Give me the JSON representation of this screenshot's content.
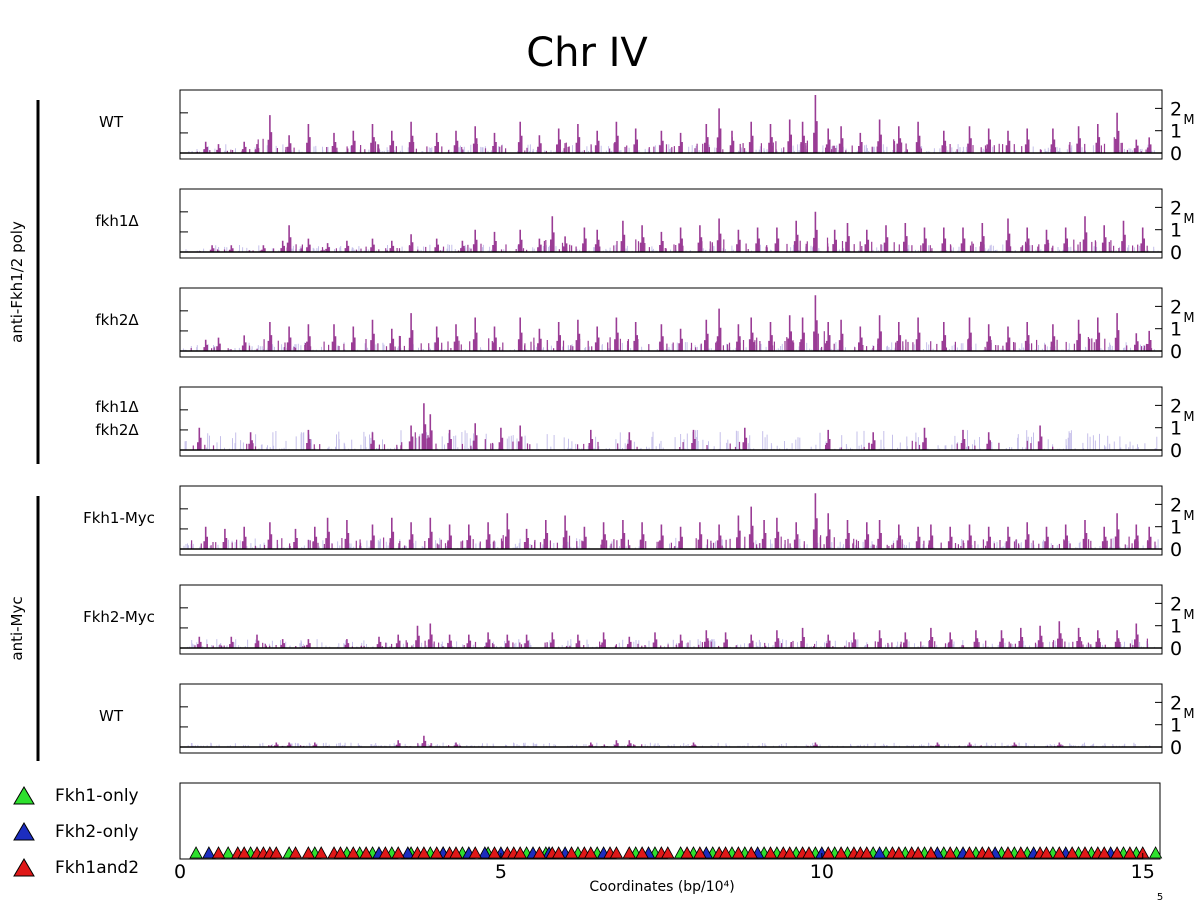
{
  "chart_data": {
    "type": "bar",
    "title": "Chr IV",
    "xlabel": "Coordinates (bp/10⁴)",
    "x_unit_label": "5",
    "xlim": [
      0,
      15.3
    ],
    "x_ticks": [
      "0",
      "5",
      "10",
      "15"
    ],
    "ylim": [
      0,
      2.6
    ],
    "y_ticks": [
      "0",
      "1",
      "2"
    ],
    "y_unit_label": "M",
    "colors": {
      "bound": "#9a3c95",
      "background": "#c6c0ea",
      "axis": "#000000",
      "fkh1_only": "#2ee02e",
      "fkh2_only": "#1c2dbf",
      "fkh1and2": "#e01818"
    },
    "groups": [
      {
        "label": "anti-Fkh1/2 poly",
        "tracks": [
          0,
          1,
          2,
          3
        ]
      },
      {
        "label": "anti-Myc",
        "tracks": [
          4,
          5,
          6
        ]
      }
    ],
    "tracks": [
      {
        "label": "WT",
        "peaks": [
          [
            0.4,
            0.5
          ],
          [
            0.6,
            0.4
          ],
          [
            1.0,
            0.5
          ],
          [
            1.2,
            0.4
          ],
          [
            1.4,
            1.7
          ],
          [
            1.7,
            0.8
          ],
          [
            2.0,
            1.3
          ],
          [
            2.4,
            0.9
          ],
          [
            2.7,
            1.0
          ],
          [
            3.0,
            1.3
          ],
          [
            3.3,
            1.0
          ],
          [
            3.6,
            1.4
          ],
          [
            4.0,
            0.9
          ],
          [
            4.3,
            1.0
          ],
          [
            4.6,
            1.2
          ],
          [
            4.9,
            0.9
          ],
          [
            5.3,
            1.4
          ],
          [
            5.6,
            0.8
          ],
          [
            5.9,
            1.1
          ],
          [
            6.2,
            1.3
          ],
          [
            6.5,
            1.0
          ],
          [
            6.8,
            1.4
          ],
          [
            7.1,
            1.1
          ],
          [
            7.5,
            1.0
          ],
          [
            7.8,
            0.9
          ],
          [
            8.2,
            1.3
          ],
          [
            8.4,
            2.0
          ],
          [
            8.6,
            1.0
          ],
          [
            8.9,
            1.4
          ],
          [
            9.2,
            1.3
          ],
          [
            9.5,
            1.5
          ],
          [
            9.7,
            1.4
          ],
          [
            9.9,
            2.6
          ],
          [
            10.1,
            1.1
          ],
          [
            10.3,
            1.2
          ],
          [
            10.6,
            0.9
          ],
          [
            10.9,
            1.5
          ],
          [
            11.2,
            1.2
          ],
          [
            11.5,
            1.4
          ],
          [
            11.9,
            1.0
          ],
          [
            12.3,
            1.2
          ],
          [
            12.6,
            1.1
          ],
          [
            12.9,
            1.0
          ],
          [
            13.2,
            1.1
          ],
          [
            13.6,
            1.1
          ],
          [
            14.0,
            1.2
          ],
          [
            14.3,
            1.3
          ],
          [
            14.6,
            1.8
          ],
          [
            14.9,
            0.6
          ],
          [
            15.1,
            0.7
          ]
        ],
        "noise": 0.35
      },
      {
        "label": "fkh1Δ",
        "peaks": [
          [
            0.5,
            0.3
          ],
          [
            0.8,
            0.3
          ],
          [
            1.3,
            0.3
          ],
          [
            1.6,
            0.5
          ],
          [
            1.7,
            1.2
          ],
          [
            2.0,
            0.6
          ],
          [
            2.3,
            0.4
          ],
          [
            2.6,
            0.5
          ],
          [
            3.0,
            0.6
          ],
          [
            3.3,
            0.5
          ],
          [
            3.6,
            0.8
          ],
          [
            4.0,
            0.6
          ],
          [
            4.4,
            0.5
          ],
          [
            4.6,
            1.0
          ],
          [
            4.9,
            0.9
          ],
          [
            5.3,
            1.0
          ],
          [
            5.6,
            0.6
          ],
          [
            5.8,
            1.6
          ],
          [
            6.0,
            0.7
          ],
          [
            6.3,
            1.1
          ],
          [
            6.5,
            1.0
          ],
          [
            6.9,
            1.4
          ],
          [
            7.2,
            1.2
          ],
          [
            7.5,
            0.9
          ],
          [
            7.8,
            1.1
          ],
          [
            8.1,
            1.2
          ],
          [
            8.4,
            1.5
          ],
          [
            8.7,
            1.0
          ],
          [
            9.0,
            1.1
          ],
          [
            9.3,
            1.1
          ],
          [
            9.6,
            1.4
          ],
          [
            9.9,
            1.8
          ],
          [
            10.2,
            1.0
          ],
          [
            10.4,
            1.3
          ],
          [
            10.7,
            1.0
          ],
          [
            11.0,
            1.2
          ],
          [
            11.3,
            1.3
          ],
          [
            11.6,
            1.1
          ],
          [
            11.9,
            1.1
          ],
          [
            12.2,
            1.1
          ],
          [
            12.5,
            1.3
          ],
          [
            12.9,
            1.5
          ],
          [
            13.2,
            1.1
          ],
          [
            13.5,
            1.0
          ],
          [
            13.8,
            1.1
          ],
          [
            14.1,
            1.6
          ],
          [
            14.4,
            1.2
          ],
          [
            14.7,
            1.4
          ],
          [
            15.0,
            1.1
          ]
        ],
        "noise": 0.3
      },
      {
        "label": "fkh2Δ",
        "peaks": [
          [
            0.4,
            0.5
          ],
          [
            0.6,
            0.6
          ],
          [
            1.0,
            0.7
          ],
          [
            1.4,
            1.3
          ],
          [
            1.7,
            1.1
          ],
          [
            2.0,
            1.2
          ],
          [
            2.4,
            1.2
          ],
          [
            2.7,
            1.1
          ],
          [
            3.0,
            1.4
          ],
          [
            3.3,
            1.0
          ],
          [
            3.6,
            1.7
          ],
          [
            4.0,
            1.1
          ],
          [
            4.3,
            1.2
          ],
          [
            4.6,
            1.5
          ],
          [
            4.9,
            1.1
          ],
          [
            5.3,
            1.5
          ],
          [
            5.6,
            1.0
          ],
          [
            5.9,
            1.3
          ],
          [
            6.2,
            1.4
          ],
          [
            6.5,
            1.1
          ],
          [
            6.8,
            1.5
          ],
          [
            7.1,
            1.3
          ],
          [
            7.5,
            1.2
          ],
          [
            7.8,
            1.0
          ],
          [
            8.2,
            1.4
          ],
          [
            8.4,
            1.9
          ],
          [
            8.7,
            1.2
          ],
          [
            8.9,
            1.5
          ],
          [
            9.2,
            1.3
          ],
          [
            9.5,
            1.6
          ],
          [
            9.7,
            1.5
          ],
          [
            9.9,
            2.5
          ],
          [
            10.1,
            1.3
          ],
          [
            10.3,
            1.4
          ],
          [
            10.6,
            1.1
          ],
          [
            10.9,
            1.6
          ],
          [
            11.2,
            1.3
          ],
          [
            11.5,
            1.5
          ],
          [
            11.9,
            1.3
          ],
          [
            12.3,
            1.5
          ],
          [
            12.6,
            1.2
          ],
          [
            12.9,
            1.1
          ],
          [
            13.2,
            1.3
          ],
          [
            13.6,
            1.2
          ],
          [
            14.0,
            1.4
          ],
          [
            14.3,
            1.5
          ],
          [
            14.6,
            1.7
          ],
          [
            14.9,
            0.8
          ],
          [
            15.1,
            0.9
          ]
        ],
        "noise": 0.35
      },
      {
        "label": "fkh1Δ",
        "label_line2": "fkh2Δ",
        "peaks": [
          [
            0.3,
            1.0
          ],
          [
            1.1,
            0.8
          ],
          [
            2.0,
            0.9
          ],
          [
            3.0,
            0.8
          ],
          [
            3.6,
            1.1
          ],
          [
            3.8,
            2.1
          ],
          [
            3.9,
            1.6
          ],
          [
            4.2,
            0.9
          ],
          [
            4.6,
            1.2
          ],
          [
            5.0,
            1.0
          ],
          [
            5.3,
            1.1
          ],
          [
            6.4,
            0.9
          ],
          [
            7.0,
            0.8
          ],
          [
            8.0,
            0.9
          ],
          [
            8.8,
            1.0
          ],
          [
            10.1,
            0.9
          ],
          [
            10.8,
            0.8
          ],
          [
            11.6,
            1.0
          ],
          [
            12.2,
            0.9
          ],
          [
            12.6,
            0.8
          ],
          [
            13.4,
            1.1
          ]
        ],
        "noise": 0.85
      },
      {
        "label": "Fkh1-Myc",
        "peaks": [
          [
            0.4,
            1.0
          ],
          [
            0.7,
            0.9
          ],
          [
            1.0,
            1.0
          ],
          [
            1.4,
            1.2
          ],
          [
            1.8,
            0.9
          ],
          [
            2.1,
            1.0
          ],
          [
            2.3,
            1.4
          ],
          [
            2.6,
            1.3
          ],
          [
            3.0,
            1.1
          ],
          [
            3.3,
            1.4
          ],
          [
            3.6,
            1.2
          ],
          [
            3.9,
            1.4
          ],
          [
            4.2,
            1.1
          ],
          [
            4.5,
            1.1
          ],
          [
            4.8,
            1.2
          ],
          [
            5.1,
            1.6
          ],
          [
            5.4,
            0.9
          ],
          [
            5.7,
            1.3
          ],
          [
            6.0,
            1.5
          ],
          [
            6.3,
            1.0
          ],
          [
            6.6,
            1.2
          ],
          [
            6.9,
            1.3
          ],
          [
            7.2,
            1.2
          ],
          [
            7.5,
            1.1
          ],
          [
            7.8,
            1.0
          ],
          [
            8.1,
            1.2
          ],
          [
            8.4,
            1.1
          ],
          [
            8.7,
            1.5
          ],
          [
            8.9,
            1.9
          ],
          [
            9.1,
            1.3
          ],
          [
            9.3,
            1.4
          ],
          [
            9.6,
            1.2
          ],
          [
            9.9,
            2.5
          ],
          [
            10.1,
            1.6
          ],
          [
            10.4,
            1.3
          ],
          [
            10.7,
            1.2
          ],
          [
            10.9,
            1.3
          ],
          [
            11.2,
            1.1
          ],
          [
            11.5,
            1.0
          ],
          [
            11.7,
            1.1
          ],
          [
            12.0,
            1.0
          ],
          [
            12.3,
            1.1
          ],
          [
            12.6,
            1.0
          ],
          [
            12.9,
            1.0
          ],
          [
            13.2,
            1.2
          ],
          [
            13.5,
            1.0
          ],
          [
            13.8,
            1.1
          ],
          [
            14.1,
            1.3
          ],
          [
            14.4,
            1.0
          ],
          [
            14.6,
            1.6
          ],
          [
            14.9,
            1.1
          ],
          [
            15.1,
            1.0
          ]
        ],
        "noise": 0.45
      },
      {
        "label": "Fkh2-Myc",
        "peaks": [
          [
            0.3,
            0.5
          ],
          [
            0.8,
            0.5
          ],
          [
            1.2,
            0.6
          ],
          [
            1.6,
            0.4
          ],
          [
            2.0,
            0.4
          ],
          [
            2.6,
            0.4
          ],
          [
            3.1,
            0.5
          ],
          [
            3.4,
            0.6
          ],
          [
            3.7,
            1.0
          ],
          [
            3.9,
            1.1
          ],
          [
            4.2,
            0.6
          ],
          [
            4.5,
            0.6
          ],
          [
            4.8,
            0.7
          ],
          [
            5.1,
            0.6
          ],
          [
            5.4,
            0.6
          ],
          [
            5.8,
            0.7
          ],
          [
            6.2,
            0.6
          ],
          [
            6.6,
            0.7
          ],
          [
            7.0,
            0.5
          ],
          [
            7.4,
            0.7
          ],
          [
            7.8,
            0.6
          ],
          [
            8.2,
            0.8
          ],
          [
            8.5,
            0.7
          ],
          [
            8.9,
            0.6
          ],
          [
            9.3,
            0.8
          ],
          [
            9.7,
            0.9
          ],
          [
            10.1,
            0.6
          ],
          [
            10.5,
            0.7
          ],
          [
            10.9,
            0.8
          ],
          [
            11.3,
            0.7
          ],
          [
            11.7,
            0.9
          ],
          [
            12.0,
            0.7
          ],
          [
            12.4,
            0.8
          ],
          [
            12.8,
            0.8
          ],
          [
            13.1,
            0.9
          ],
          [
            13.4,
            1.0
          ],
          [
            13.7,
            1.2
          ],
          [
            14.0,
            0.9
          ],
          [
            14.3,
            0.8
          ],
          [
            14.6,
            0.8
          ],
          [
            14.9,
            1.1
          ]
        ],
        "noise": 0.35
      },
      {
        "label": "WT",
        "peaks": [
          [
            1.5,
            0.2
          ],
          [
            1.7,
            0.2
          ],
          [
            2.1,
            0.2
          ],
          [
            3.4,
            0.3
          ],
          [
            3.8,
            0.5
          ],
          [
            4.3,
            0.2
          ],
          [
            6.4,
            0.2
          ],
          [
            6.8,
            0.3
          ],
          [
            7.0,
            0.3
          ],
          [
            8.0,
            0.2
          ],
          [
            9.9,
            0.2
          ],
          [
            11.8,
            0.2
          ],
          [
            12.3,
            0.2
          ],
          [
            13.0,
            0.2
          ],
          [
            13.7,
            0.2
          ]
        ],
        "noise": 0.15
      }
    ],
    "legend": [
      {
        "name": "Fkh1-only",
        "color": "#2ee02e"
      },
      {
        "name": "Fkh2-only",
        "color": "#1c2dbf"
      },
      {
        "name": "Fkh1and2",
        "color": "#e01818"
      }
    ],
    "sites": {
      "Fkh1-only": [
        0.25,
        0.75,
        1.1,
        1.7,
        2.1,
        2.6,
        2.8,
        3.0,
        3.3,
        3.6,
        3.9,
        4.1,
        4.4,
        4.8,
        5.4,
        5.7,
        6.2,
        6.5,
        7.1,
        7.4,
        7.8,
        8.0,
        8.3,
        8.6,
        8.8,
        9.1,
        9.3,
        9.6,
        9.9,
        10.2,
        10.4,
        10.8,
        11.0,
        11.3,
        11.6,
        11.9,
        12.1,
        12.4,
        12.8,
        13.0,
        13.2,
        13.6,
        14.0,
        14.2,
        14.7,
        14.9,
        15.2
      ],
      "Fkh2-only": [
        0.45,
        3.1,
        3.55,
        4.1,
        4.5,
        4.75,
        5.0,
        5.5,
        5.75,
        6.0,
        6.6,
        7.3,
        8.2,
        9.0,
        10.0,
        10.9,
        11.8,
        12.2,
        12.7,
        13.3,
        13.8,
        14.5
      ],
      "Fkh1and2": [
        0.6,
        0.9,
        1.0,
        1.2,
        1.3,
        1.4,
        1.5,
        1.8,
        2.0,
        2.2,
        2.4,
        2.5,
        2.7,
        2.9,
        3.2,
        3.4,
        3.7,
        3.8,
        4.0,
        4.2,
        4.3,
        4.6,
        4.9,
        5.1,
        5.2,
        5.3,
        5.6,
        5.8,
        5.9,
        6.1,
        6.3,
        6.4,
        6.7,
        6.8,
        7.0,
        7.2,
        7.5,
        7.6,
        7.9,
        8.1,
        8.4,
        8.5,
        8.7,
        8.9,
        9.2,
        9.4,
        9.5,
        9.7,
        9.8,
        10.1,
        10.3,
        10.5,
        10.6,
        10.7,
        11.1,
        11.2,
        11.4,
        11.5,
        11.7,
        12.0,
        12.3,
        12.5,
        12.6,
        12.9,
        13.1,
        13.4,
        13.5,
        13.7,
        13.9,
        14.1,
        14.3,
        14.4,
        14.6,
        14.8,
        15.0
      ]
    }
  }
}
